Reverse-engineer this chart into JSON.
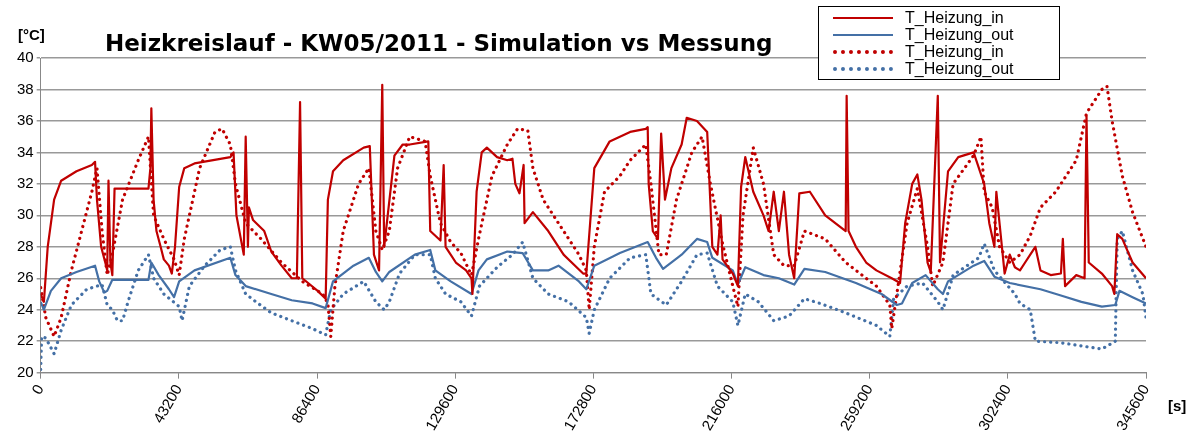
{
  "chart_data": {
    "type": "line",
    "title": "Heizkreislauf - KW05/2011 - Simulation vs Messung",
    "ylabel": "[°C]",
    "xlabel": "[s]",
    "xlim": [
      0,
      345600
    ],
    "xticks": [
      0,
      43200,
      86400,
      129600,
      172800,
      216000,
      259200,
      302400,
      345600
    ],
    "ylim": [
      20,
      40
    ],
    "yticks": [
      20,
      22,
      24,
      26,
      28,
      30,
      32,
      34,
      36,
      38,
      40
    ],
    "grid": "y",
    "legend": "top right",
    "marker": "none",
    "series": [
      {
        "name": "T_Heizung_in",
        "color": "#c00000",
        "line_style": "solid",
        "x": [
          0,
          1000,
          2200,
          4200,
          6400,
          11200,
          16000,
          17000,
          17600,
          18900,
          20200,
          20800,
          21200,
          21800,
          22400,
          23100,
          33700,
          34300,
          34600,
          35300,
          36200,
          37500,
          38500,
          40100,
          41000,
          42000,
          43300,
          44900,
          48100,
          59300,
          60300,
          61200,
          63500,
          64100,
          64800,
          65100,
          66400,
          69900,
          72100,
          75300,
          78500,
          80100,
          81100,
          81800,
          86600,
          89100,
          89800,
          91400,
          94600,
          101000,
          102900,
          104200,
          105800,
          106800,
          107400,
          110600,
          113200,
          115400,
          121200,
          121800,
          125000,
          126000,
          126600,
          129800,
          133000,
          134700,
          135000,
          136300,
          137900,
          139500,
          142700,
          145900,
          147500,
          148400,
          149700,
          151000,
          151300,
          153900,
          158700,
          163500,
          169600,
          170600,
          173100,
          177900,
          184300,
          189200,
          189800,
          190100,
          191400,
          193000,
          194000,
          195200,
          197200,
          200400,
          202000,
          205200,
          208400,
          210000,
          211600,
          212600,
          213200,
          216400,
          218000,
          219000,
          220300,
          222800,
          226000,
          227600,
          229200,
          230800,
          232400,
          234000,
          235600,
          237200,
          240500,
          245300,
          251700,
          252000,
          252600,
          254900,
          258100,
          261300,
          266100,
          268700,
          270300,
          272500,
          274100,
          275400,
          277300,
          278300,
          280500,
          281200,
          283700,
          286900,
          291700,
          295000,
          296600,
          298200,
          298800,
          301400,
          303000,
          304600,
          306200,
          307800,
          311000,
          312600,
          315800,
          319000,
          319600,
          320300,
          323800,
          326400,
          327000,
          327700,
          331800,
          335000,
          335700,
          336600,
          338200,
          341400,
          345600
        ],
        "values": [
          25.0,
          24.5,
          28,
          31,
          32.2,
          32.8,
          33.2,
          33.4,
          31,
          28,
          27,
          26.5,
          32.2,
          27,
          26.2,
          31.7,
          31.7,
          33,
          36.8,
          31,
          29,
          28,
          27.2,
          26.8,
          26.3,
          28,
          31.8,
          33,
          33.3,
          33.7,
          34,
          30,
          27.5,
          35,
          28,
          30.5,
          29.7,
          29,
          27.7,
          26.8,
          26,
          26,
          37.2,
          26,
          25.2,
          24.7,
          31,
          32.8,
          33.5,
          34.3,
          34.4,
          27.5,
          26.5,
          38.3,
          28,
          33.8,
          34.5,
          34.5,
          34.7,
          29,
          28.4,
          33.2,
          28,
          27,
          26.5,
          26,
          25,
          31.5,
          34,
          34.3,
          33.7,
          33.5,
          33.6,
          32,
          31.4,
          33.2,
          29.5,
          30.2,
          29,
          27.5,
          26.3,
          26.3,
          33,
          34.7,
          35.3,
          35.5,
          35.6,
          32,
          29,
          28.5,
          35.2,
          31,
          33,
          34.5,
          36.2,
          36,
          35.3,
          28,
          27.5,
          30,
          27.2,
          26.3,
          25.5,
          31.8,
          33.7,
          31.5,
          30,
          29,
          31.5,
          29,
          31.5,
          27.5,
          26,
          31.4,
          31.5,
          30,
          29,
          37.6,
          29,
          28,
          27,
          26.5,
          26,
          25.7,
          29.5,
          32,
          32.6,
          31,
          27,
          26.4,
          37.6,
          27,
          32.8,
          33.7,
          34,
          32,
          29.5,
          28,
          31.5,
          26.3,
          27.5,
          26.7,
          26.5,
          27,
          28,
          26.5,
          26.2,
          26.3,
          28.5,
          25.5,
          26.2,
          26,
          36.3,
          27,
          26.3,
          25.5,
          25,
          28.8,
          28.5,
          27,
          26
        ]
      },
      {
        "name": "T_Heizung_out",
        "color": "#4470a6",
        "line_style": "solid",
        "x": [
          0,
          1000,
          3200,
          6400,
          11200,
          17000,
          18300,
          19900,
          20800,
          22400,
          33700,
          34600,
          36900,
          40100,
          41700,
          43300,
          48100,
          59300,
          60900,
          64100,
          72100,
          78500,
          85000,
          89100,
          91400,
          97800,
          102600,
          104800,
          106800,
          109000,
          117000,
          121800,
          123400,
          128200,
          134700,
          136900,
          139500,
          145900,
          150700,
          153900,
          158700,
          161900,
          168300,
          170600,
          173100,
          181100,
          189800,
          192400,
          194600,
          200400,
          205200,
          208400,
          210000,
          216400,
          218000,
          220300,
          226000,
          230800,
          235600,
          238800,
          245300,
          254900,
          262900,
          267700,
          269300,
          272500,
          276700,
          280500,
          282100,
          283700,
          291700,
          295000,
          298200,
          303000,
          312600,
          319000,
          325400,
          331800,
          336000,
          337300,
          341400,
          345600
        ],
        "values": [
          24.5,
          24.0,
          25.2,
          26,
          26.4,
          26.8,
          25.8,
          25.1,
          25.2,
          25.9,
          25.9,
          27.0,
          26.2,
          25.3,
          24.8,
          25.8,
          26.5,
          27.3,
          26.2,
          25.5,
          25.0,
          24.6,
          24.4,
          24.1,
          25.8,
          26.8,
          27.3,
          26.4,
          25.8,
          26.4,
          27.5,
          27.8,
          26.5,
          25.8,
          25,
          26.5,
          27.2,
          27.7,
          27.6,
          26.5,
          26.5,
          26.8,
          25.8,
          25.3,
          26.8,
          27.6,
          28.3,
          27.3,
          26.6,
          27.5,
          28.5,
          28.3,
          27.3,
          26.5,
          25.6,
          26.7,
          26.2,
          26,
          25.6,
          26.6,
          26.4,
          25.7,
          25,
          24.3,
          24.4,
          25.7,
          26.2,
          25.3,
          25.0,
          25.8,
          26.8,
          27.1,
          26.1,
          25.7,
          25.3,
          24.9,
          24.5,
          24.2,
          24.3,
          25.2,
          24.8,
          24.4
        ]
      },
      {
        "name": "T_Heizung_in",
        "color": "#c00000",
        "line_style": "dotted",
        "x": [
          0,
          1600,
          4200,
          6400,
          9600,
          12800,
          16000,
          17600,
          19200,
          20800,
          22400,
          25600,
          30500,
          33700,
          35300,
          38500,
          41700,
          43300,
          44900,
          49700,
          54500,
          56700,
          59300,
          60900,
          64100,
          68900,
          75300,
          81800,
          88200,
          89800,
          90700,
          92000,
          94600,
          99400,
          102600,
          104800,
          106800,
          109000,
          111600,
          115400,
          120200,
          121800,
          125000,
          128200,
          131400,
          134700,
          136900,
          141100,
          145900,
          149100,
          152300,
          153900,
          157100,
          161900,
          168300,
          170600,
          171500,
          173100,
          176300,
          181100,
          184300,
          189200,
          190800,
          193300,
          195600,
          198800,
          203600,
          206800,
          209400,
          213200,
          216400,
          218000,
          219600,
          222800,
          226000,
          229200,
          232400,
          235600,
          238800,
          245300,
          251700,
          261300,
          265500,
          266100,
          267700,
          270900,
          274100,
          277300,
          278900,
          282100,
          285300,
          291700,
          294000,
          295000,
          297500,
          299800,
          303000,
          306200,
          309400,
          312600,
          317400,
          323800,
          327000,
          331800,
          333400,
          335000,
          338200,
          341400,
          345600
        ],
        "values": [
          25.4,
          23.5,
          22.3,
          23.5,
          26.5,
          29,
          31.5,
          33,
          29,
          26.2,
          27.5,
          31,
          33.5,
          35.0,
          30,
          28.5,
          27.2,
          26.2,
          28.5,
          33,
          35.3,
          35.5,
          34.5,
          32,
          29.5,
          28.5,
          27,
          25.8,
          25.0,
          24.4,
          22.3,
          25.5,
          29,
          32,
          33,
          29,
          27.8,
          29,
          33,
          35,
          34.7,
          32.5,
          29.5,
          28.3,
          27.6,
          26.2,
          28.5,
          32.5,
          34.5,
          35.5,
          35.4,
          33,
          31,
          29.5,
          27.5,
          26.5,
          24,
          28,
          31.5,
          32.5,
          33.5,
          34.5,
          32,
          27.5,
          27.5,
          31,
          34,
          35,
          32,
          28.2,
          25.5,
          24.2,
          30,
          34.3,
          32,
          27.5,
          26.8,
          26.8,
          29,
          28.5,
          27,
          25.5,
          24.3,
          22.8,
          25,
          29.5,
          31.7,
          28,
          25.5,
          27,
          32,
          33.8,
          35,
          31.5,
          30.5,
          28,
          27,
          27.5,
          28.7,
          30.5,
          31.5,
          33.5,
          36.5,
          38,
          38.2,
          36,
          32.5,
          30.2,
          28
        ]
      },
      {
        "name": "T_Heizung_out",
        "color": "#4470a6",
        "line_style": "dotted",
        "x": [
          0,
          300,
          1600,
          4200,
          6400,
          9600,
          14400,
          17600,
          19200,
          20800,
          22400,
          24000,
          25600,
          27300,
          30500,
          33700,
          35300,
          38500,
          43300,
          44200,
          46500,
          51300,
          56100,
          59300,
          60900,
          64100,
          67300,
          72100,
          78500,
          85000,
          89100,
          90700,
          94600,
          101000,
          104800,
          107400,
          109000,
          112200,
          117000,
          121800,
          123400,
          126600,
          131400,
          134700,
          137200,
          142700,
          147500,
          150700,
          153900,
          158700,
          165100,
          170600,
          171500,
          173100,
          177900,
          184300,
          189200,
          190800,
          195600,
          200400,
          205200,
          208400,
          211600,
          216400,
          218000,
          220300,
          224400,
          229200,
          234000,
          238800,
          243700,
          251700,
          261300,
          265500,
          266700,
          270900,
          275700,
          280500,
          282100,
          285300,
          293300,
          295000,
          298200,
          304600,
          306200,
          309400,
          311000,
          319000,
          325400,
          331800,
          336000,
          336600,
          338200,
          341400,
          344600,
          345600
        ],
        "values": [
          20.2,
          22.3,
          22.2,
          21.2,
          22.7,
          24.3,
          25.3,
          25.5,
          25.6,
          24.3,
          24.0,
          23.3,
          23.3,
          24.5,
          26.5,
          27.5,
          26,
          25,
          24.2,
          23.3,
          25.5,
          26.8,
          27.8,
          28,
          26.5,
          25,
          24.5,
          23.8,
          23.3,
          22.8,
          22.4,
          24,
          25,
          25.8,
          24.5,
          24.0,
          24.5,
          26.3,
          27.5,
          27.5,
          26,
          25,
          24.5,
          23.6,
          25.5,
          26.7,
          27.5,
          28.3,
          26,
          25,
          24.5,
          23.5,
          22.5,
          24,
          26,
          27.3,
          27.5,
          25,
          24.3,
          25.8,
          27.5,
          27.6,
          25.5,
          24.5,
          23,
          25,
          24.5,
          23.3,
          23.6,
          24.7,
          24.4,
          23.8,
          23.0,
          22.3,
          24.7,
          25.5,
          25.7,
          24.5,
          24.0,
          26.2,
          27.3,
          28.2,
          26.5,
          25,
          24.4,
          24,
          22,
          21.9,
          21.7,
          21.5,
          22,
          28.5,
          29,
          26.5,
          25,
          23.5
        ]
      }
    ]
  }
}
